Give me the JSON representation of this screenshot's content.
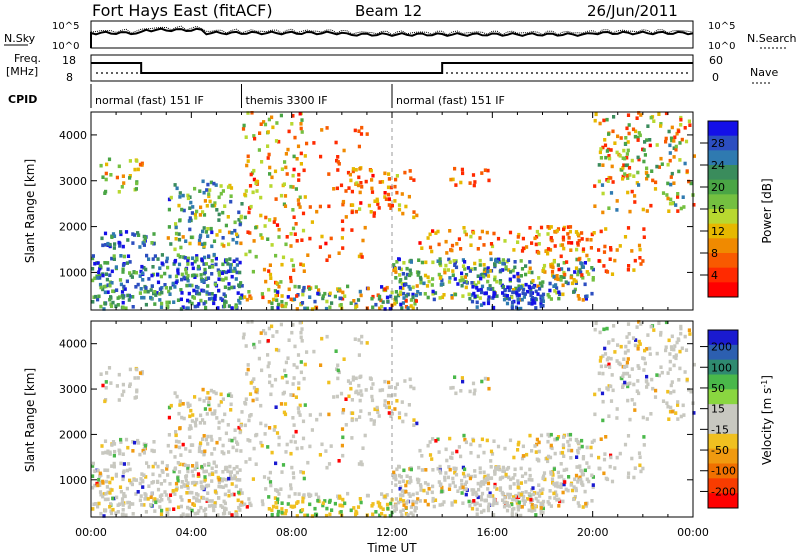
{
  "header": {
    "station": "Fort Hays East (fitACF)",
    "beam": "Beam 12",
    "date": "26/Jun/2011"
  },
  "strips": {
    "nsky": {
      "label": "N.Sky",
      "top_tick": "10^5",
      "bottom_tick": "10^0"
    },
    "nsearch": {
      "label": "N.Search",
      "top_tick": "10^5",
      "bottom_tick": "10^0"
    },
    "freq": {
      "label_line1": "Freq.",
      "label_line2": "[MHz]",
      "top_tick": "18",
      "bottom_tick": "8"
    },
    "nave": {
      "label": "Nave",
      "top_tick": "60",
      "bottom_tick": "0"
    },
    "cpid": {
      "label": "CPID",
      "segments": [
        {
          "text": "normal (fast) 151 IF",
          "start_h": 0,
          "end_h": 6
        },
        {
          "text": "themis 3300 IF",
          "start_h": 6,
          "end_h": 12
        },
        {
          "text": "normal (fast) 151 IF",
          "start_h": 12,
          "end_h": 24
        }
      ]
    }
  },
  "chart_data": [
    {
      "type": "heatmap",
      "name": "power",
      "ylabel": "Slant Range [km]",
      "colorbar_label": "Power [dB]",
      "xlim": [
        0,
        24
      ],
      "ylim": [
        180,
        4500
      ],
      "yticks": [
        1000,
        2000,
        3000,
        4000
      ],
      "xticks": [
        "00:00",
        "04:00",
        "08:00",
        "12:00",
        "16:00",
        "20:00",
        "00:00"
      ],
      "colorbar_ticks": [
        "4",
        "8",
        "12",
        "16",
        "20",
        "24",
        "28"
      ],
      "colorbar_colors": [
        "#1410e8",
        "#2c4ec0",
        "#2f7ab0",
        "#3a8c5c",
        "#4aa545",
        "#74c040",
        "#b8d830",
        "#e6b800",
        "#f08a00",
        "#f85a00",
        "#ff2a00",
        "#ff0000"
      ]
    },
    {
      "type": "heatmap",
      "name": "velocity",
      "ylabel": "Slant Range [km]",
      "colorbar_label": "Velocity [m s^-1]",
      "xlim": [
        0,
        24
      ],
      "ylim": [
        180,
        4500
      ],
      "yticks": [
        1000,
        2000,
        3000,
        4000
      ],
      "xticks": [
        "00:00",
        "04:00",
        "08:00",
        "12:00",
        "16:00",
        "20:00",
        "00:00"
      ],
      "colorbar_ticks": [
        "200",
        "100",
        "50",
        "15",
        "-15",
        "-50",
        "-100",
        "-200"
      ],
      "colorbar_colors": [
        "#1a1ad0",
        "#2c5fb0",
        "#2f8a70",
        "#4ab84a",
        "#8ad640",
        "#c8c8c0",
        "#c8c8c0",
        "#f0c020",
        "#f09a10",
        "#f07000",
        "#f83c00",
        "#ff0000"
      ]
    }
  ],
  "xaxis_label": "Time UT"
}
